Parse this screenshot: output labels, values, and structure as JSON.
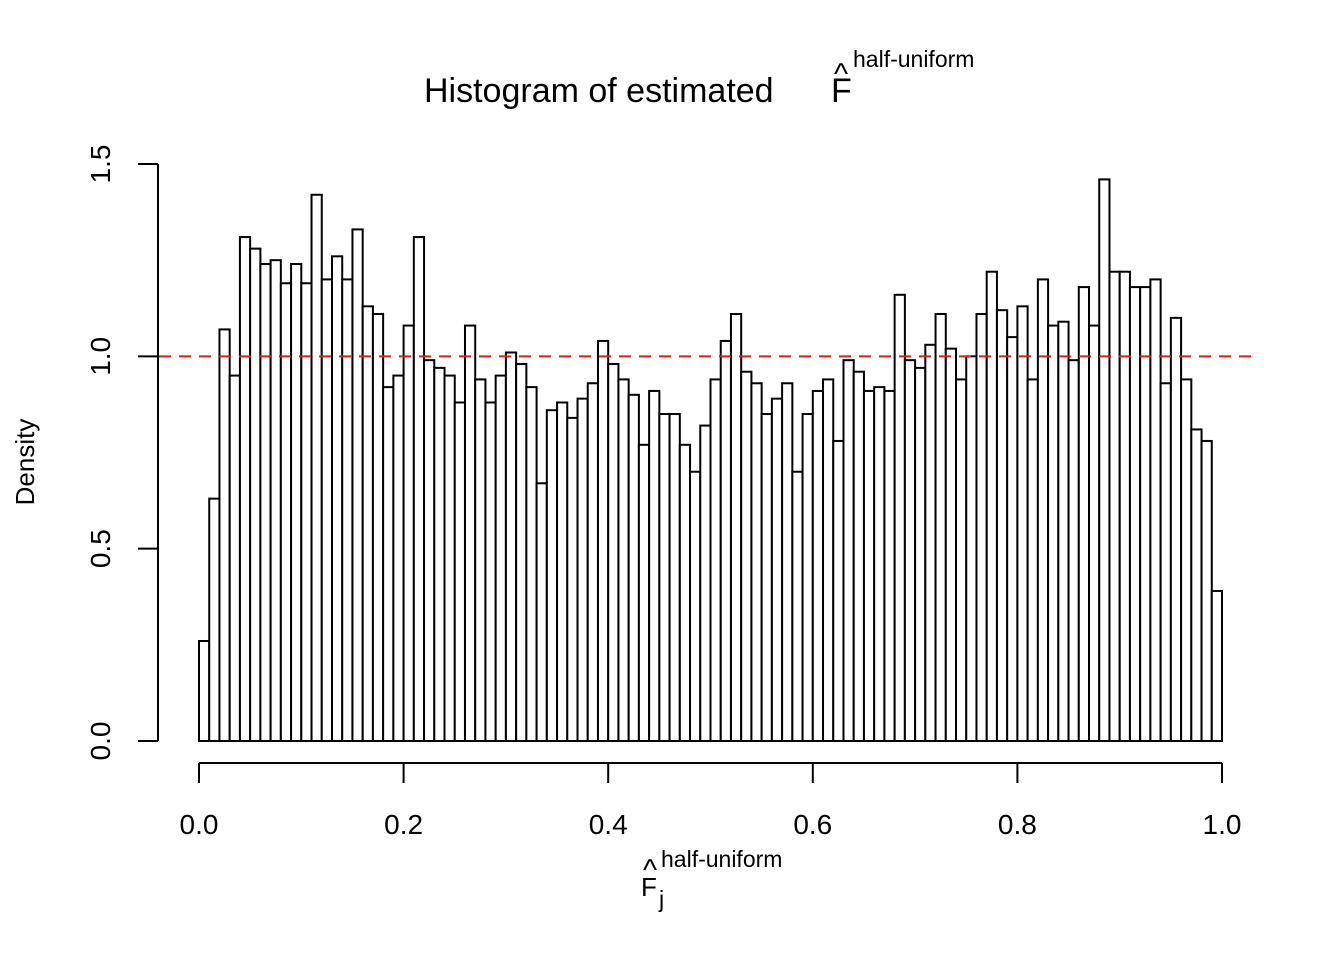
{
  "chart_data": {
    "type": "histogram",
    "title": {
      "prefix": "Histogram of estimated",
      "symbol": "F",
      "superscript": "half-uniform"
    },
    "xlabel": {
      "symbol": "F",
      "subscript": "j",
      "superscript": "half-uniform"
    },
    "ylabel": "Density",
    "xlim": [
      0,
      1
    ],
    "ylim": [
      0,
      1.5
    ],
    "x_ticks": [
      "0.0",
      "0.2",
      "0.4",
      "0.6",
      "0.8",
      "1.0"
    ],
    "y_ticks": [
      "0.0",
      "0.5",
      "1.0",
      "1.5"
    ],
    "bin_width": 0.01,
    "bins_start": 0.0,
    "densities": [
      0.26,
      0.63,
      1.07,
      0.95,
      1.31,
      1.28,
      1.24,
      1.25,
      1.19,
      1.24,
      1.19,
      1.42,
      1.2,
      1.26,
      1.2,
      1.33,
      1.13,
      1.11,
      0.92,
      0.95,
      1.08,
      1.31,
      0.99,
      0.97,
      0.95,
      0.88,
      1.08,
      0.94,
      0.88,
      0.95,
      1.01,
      0.98,
      0.92,
      0.67,
      0.86,
      0.88,
      0.84,
      0.89,
      0.93,
      1.04,
      0.98,
      0.94,
      0.9,
      0.77,
      0.91,
      0.85,
      0.85,
      0.77,
      0.7,
      0.82,
      0.94,
      1.04,
      1.11,
      0.96,
      0.93,
      0.85,
      0.89,
      0.93,
      0.7,
      0.85,
      0.91,
      0.94,
      0.78,
      0.99,
      0.96,
      0.91,
      0.92,
      0.91,
      1.16,
      0.99,
      0.97,
      1.03,
      1.11,
      1.02,
      0.94,
      1.0,
      1.11,
      1.22,
      1.12,
      1.05,
      1.13,
      0.94,
      1.2,
      1.08,
      1.09,
      0.99,
      1.18,
      1.08,
      1.46,
      1.22,
      1.22,
      1.18,
      1.18,
      1.2,
      0.93,
      1.1,
      0.94,
      0.81,
      0.78,
      0.39
    ],
    "reference_line": {
      "y": 1.0,
      "color": "#e31a1c",
      "style": "dashed"
    },
    "bar_fill": "#ffffff",
    "bar_stroke": "#000000"
  }
}
